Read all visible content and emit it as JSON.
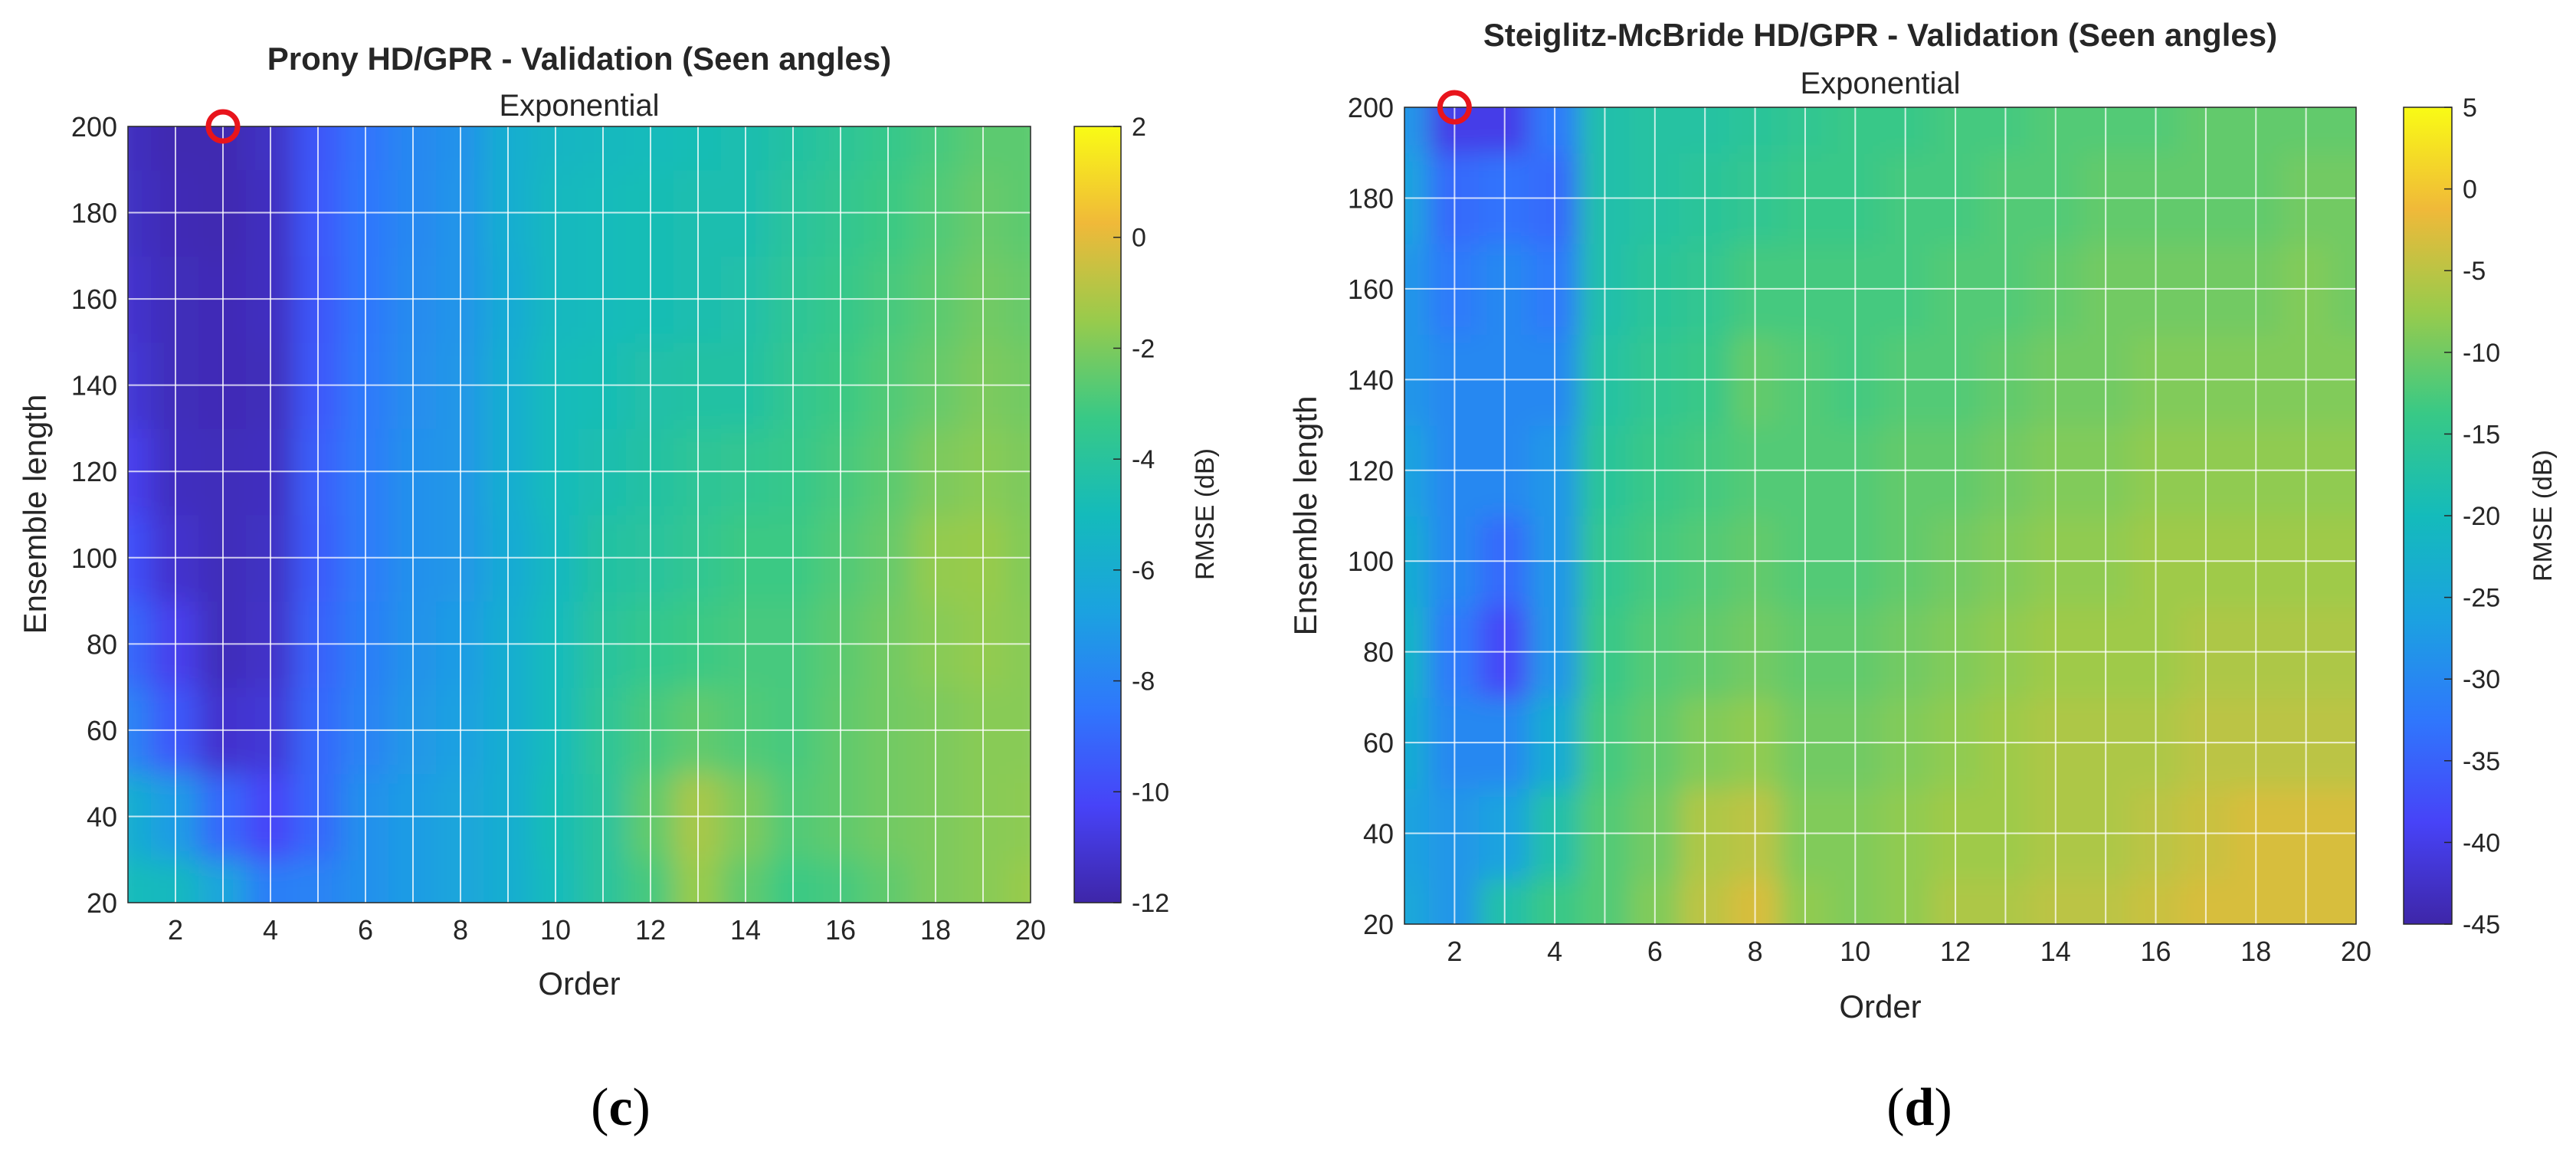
{
  "chart_data": [
    {
      "type": "heatmap",
      "panel_label": {
        "open": "(",
        "letter": "c",
        "close": ")"
      },
      "title": "Prony HD/GPR - Validation (Seen angles)",
      "subtitle": "Exponential",
      "xlabel": "Order",
      "ylabel": "Ensemble length",
      "x": [
        1,
        2,
        3,
        4,
        5,
        6,
        7,
        8,
        9,
        10,
        11,
        12,
        13,
        14,
        15,
        16,
        17,
        18,
        19,
        20
      ],
      "y": [
        20,
        40,
        60,
        80,
        100,
        120,
        140,
        160,
        180,
        200
      ],
      "xlim": [
        1,
        20
      ],
      "ylim": [
        20,
        200
      ],
      "xticks": [
        "2",
        "4",
        "6",
        "8",
        "10",
        "12",
        "14",
        "16",
        "18",
        "20"
      ],
      "yticks": [
        "20",
        "40",
        "60",
        "80",
        "100",
        "120",
        "140",
        "160",
        "180",
        "200"
      ],
      "colorbar": {
        "label": "RMSE (dB)",
        "range": [
          -12,
          2
        ],
        "ticks": [
          "2",
          "0",
          "-2",
          "-4",
          "-6",
          "-8",
          "-10",
          "-12"
        ]
      },
      "grid": true,
      "marker": {
        "shape": "circle",
        "color": "#e8141c",
        "x": 3,
        "y": 200
      },
      "z_note": "rows ordered by y ascending (20 -> 200), columns by order 1 -> 20; values in dB",
      "z": [
        [
          -5.0,
          -5.2,
          -6.5,
          -8.2,
          -8.0,
          -7.5,
          -7.0,
          -6.5,
          -6.0,
          -5.0,
          -4.0,
          -3.0,
          -1.5,
          -2.5,
          -3.2,
          -3.0,
          -2.5,
          -2.0,
          -1.8,
          -1.5
        ],
        [
          -6.0,
          -7.0,
          -9.0,
          -10.2,
          -9.0,
          -7.5,
          -7.0,
          -6.5,
          -6.0,
          -4.8,
          -4.0,
          -2.5,
          -1.2,
          -2.0,
          -2.8,
          -2.5,
          -2.2,
          -2.0,
          -1.8,
          -1.7
        ],
        [
          -8.0,
          -9.5,
          -11.2,
          -11.0,
          -9.0,
          -8.0,
          -7.2,
          -6.8,
          -6.0,
          -5.0,
          -3.8,
          -3.0,
          -2.5,
          -2.8,
          -3.0,
          -2.5,
          -2.2,
          -2.0,
          -1.8,
          -1.8
        ],
        [
          -9.0,
          -10.5,
          -11.6,
          -11.3,
          -9.2,
          -8.2,
          -7.4,
          -7.0,
          -6.0,
          -5.0,
          -4.0,
          -3.5,
          -3.2,
          -3.0,
          -3.0,
          -2.6,
          -2.2,
          -1.8,
          -1.6,
          -1.8
        ],
        [
          -9.8,
          -11.2,
          -11.6,
          -11.4,
          -9.4,
          -8.3,
          -7.5,
          -7.2,
          -6.2,
          -5.2,
          -4.2,
          -4.0,
          -3.6,
          -3.2,
          -3.2,
          -2.8,
          -2.4,
          -1.6,
          -1.5,
          -1.9
        ],
        [
          -10.5,
          -11.5,
          -11.6,
          -11.5,
          -9.3,
          -8.3,
          -7.5,
          -7.2,
          -6.0,
          -5.0,
          -4.6,
          -4.2,
          -3.8,
          -3.6,
          -3.4,
          -3.0,
          -2.6,
          -2.0,
          -1.8,
          -2.0
        ],
        [
          -11.0,
          -11.6,
          -11.7,
          -11.6,
          -9.5,
          -8.4,
          -7.6,
          -7.2,
          -6.0,
          -5.0,
          -4.8,
          -4.4,
          -4.2,
          -4.2,
          -3.6,
          -3.2,
          -2.8,
          -2.4,
          -2.0,
          -2.2
        ],
        [
          -11.2,
          -11.6,
          -11.7,
          -11.5,
          -9.6,
          -8.5,
          -7.7,
          -7.3,
          -6.2,
          -5.2,
          -5.0,
          -4.8,
          -4.6,
          -4.4,
          -3.8,
          -3.4,
          -3.0,
          -2.6,
          -2.2,
          -2.4
        ],
        [
          -11.4,
          -11.7,
          -11.8,
          -11.5,
          -9.5,
          -8.5,
          -7.8,
          -7.3,
          -6.0,
          -5.2,
          -5.0,
          -4.8,
          -4.6,
          -4.6,
          -4.0,
          -3.6,
          -3.2,
          -2.8,
          -2.4,
          -2.6
        ],
        [
          -11.5,
          -11.8,
          -11.8,
          -11.4,
          -9.6,
          -8.6,
          -7.8,
          -7.4,
          -6.0,
          -5.4,
          -5.2,
          -5.0,
          -4.8,
          -4.6,
          -4.2,
          -3.8,
          -3.4,
          -3.0,
          -2.6,
          -2.6
        ]
      ]
    },
    {
      "type": "heatmap",
      "panel_label": {
        "open": "(",
        "letter": "d",
        "close": ")"
      },
      "title": "Steiglitz-McBride HD/GPR - Validation (Seen angles)",
      "subtitle": "Exponential",
      "xlabel": "Order",
      "ylabel": "Ensemble length",
      "x": [
        1,
        2,
        3,
        4,
        5,
        6,
        7,
        8,
        9,
        10,
        11,
        12,
        13,
        14,
        15,
        16,
        17,
        18,
        19,
        20
      ],
      "y": [
        20,
        40,
        60,
        80,
        100,
        120,
        140,
        160,
        180,
        200
      ],
      "xlim": [
        1,
        20
      ],
      "ylim": [
        20,
        200
      ],
      "xticks": [
        "2",
        "4",
        "6",
        "8",
        "10",
        "12",
        "14",
        "16",
        "18",
        "20"
      ],
      "yticks": [
        "20",
        "40",
        "60",
        "80",
        "100",
        "120",
        "140",
        "160",
        "180",
        "200"
      ],
      "colorbar": {
        "label": "RMSE (dB)",
        "range": [
          -45,
          5
        ],
        "ticks": [
          "5",
          "0",
          "-5",
          "-10",
          "-15",
          "-20",
          "-25",
          "-30",
          "-35",
          "-40",
          "-45"
        ]
      },
      "grid": true,
      "marker": {
        "shape": "circle",
        "color": "#e8141c",
        "x": 2,
        "y": 200
      },
      "z_note": "rows ordered by y ascending (20 -> 200), columns by order 1 -> 20; values in dB",
      "z": [
        [
          -25,
          -28,
          -18,
          -14,
          -12,
          -9,
          -5,
          -3,
          -8,
          -9,
          -8,
          -6,
          -6,
          -5,
          -5,
          -4,
          -3,
          -3,
          -3,
          -3
        ],
        [
          -26,
          -28,
          -26,
          -18,
          -12,
          -10,
          -6,
          -5,
          -9,
          -9,
          -8,
          -7,
          -7,
          -6,
          -6,
          -5,
          -4,
          -3,
          -3,
          -3
        ],
        [
          -24,
          -30,
          -30,
          -24,
          -13,
          -11,
          -9,
          -8,
          -10,
          -10,
          -9,
          -8,
          -7,
          -6,
          -6,
          -6,
          -5,
          -5,
          -5,
          -5
        ],
        [
          -22,
          -32,
          -38,
          -28,
          -14,
          -12,
          -11,
          -10,
          -11,
          -11,
          -10,
          -9,
          -8,
          -7,
          -7,
          -7,
          -6,
          -6,
          -6,
          -6
        ],
        [
          -24,
          -30,
          -34,
          -28,
          -15,
          -13,
          -12,
          -11,
          -12,
          -12,
          -11,
          -10,
          -9,
          -8,
          -8,
          -7,
          -7,
          -7,
          -7,
          -7
        ],
        [
          -26,
          -30,
          -30,
          -28,
          -16,
          -14,
          -13,
          -12,
          -12,
          -12,
          -11,
          -11,
          -10,
          -9,
          -9,
          -8,
          -8,
          -8,
          -8,
          -8
        ],
        [
          -28,
          -30,
          -30,
          -30,
          -17,
          -15,
          -14,
          -11,
          -12,
          -13,
          -12,
          -12,
          -11,
          -10,
          -10,
          -9,
          -9,
          -9,
          -9,
          -9
        ],
        [
          -28,
          -32,
          -30,
          -32,
          -18,
          -16,
          -15,
          -13,
          -13,
          -13,
          -13,
          -12,
          -12,
          -11,
          -10,
          -10,
          -10,
          -10,
          -9,
          -10
        ],
        [
          -26,
          -34,
          -33,
          -34,
          -18,
          -17,
          -16,
          -15,
          -14,
          -14,
          -13,
          -13,
          -12,
          -12,
          -11,
          -11,
          -11,
          -11,
          -10,
          -10
        ],
        [
          -28,
          -40,
          -40,
          -32,
          -18,
          -17,
          -17,
          -16,
          -15,
          -14,
          -14,
          -13,
          -13,
          -12,
          -12,
          -12,
          -11,
          -11,
          -11,
          -11
        ]
      ]
    }
  ]
}
